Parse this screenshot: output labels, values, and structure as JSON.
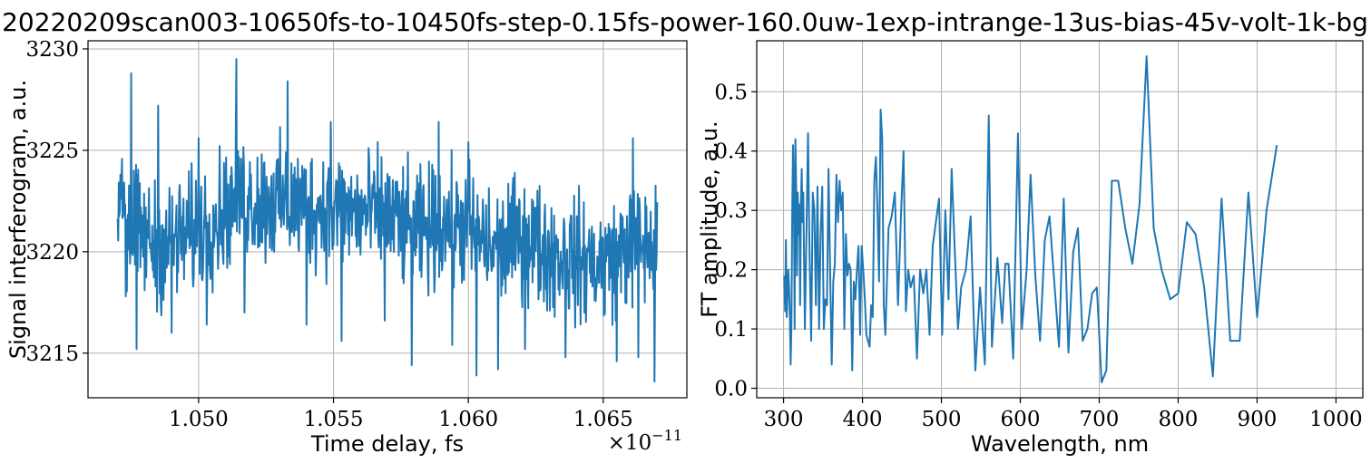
{
  "figure": {
    "suptitle": "20220209scan003-10650fs-to-10450fs-step-0.15fs-power-160.0uw-1exp-intrange-13us-bias-45v-volt-1k-bg"
  },
  "colors": {
    "series": "#1f77b4"
  },
  "chart_data": [
    {
      "type": "line",
      "title": "",
      "xlabel": "Time delay, fs",
      "ylabel": "Signal interferogram, a.u.",
      "x_offset_label": "×10",
      "x_offset_exponent": "−11",
      "xlim": [
        1.0459,
        1.0681
      ],
      "ylim": [
        3212.8,
        3230.4
      ],
      "grid": true,
      "xticks": [
        1.05,
        1.055,
        1.06,
        1.065
      ],
      "xtick_labels": [
        "1.050",
        "1.055",
        "1.060",
        "1.065"
      ],
      "yticks": [
        3215,
        3220,
        3225,
        3230
      ],
      "ytick_labels": [
        "3215",
        "3220",
        "3225",
        "3230"
      ],
      "series": [
        {
          "sampling": "x from 1.047 to 1.067 step 0.00002 (×10^-11), 1001 samples",
          "x_start": 1.047,
          "x_step": 2e-05,
          "trend": [
            [
              1.047,
              3221.6
            ],
            [
              1.0485,
              3220.2
            ],
            [
              1.05,
              3221.0
            ],
            [
              1.0515,
              3222.6
            ],
            [
              1.053,
              3222.4
            ],
            [
              1.055,
              3222.0
            ],
            [
              1.057,
              3221.8
            ],
            [
              1.058,
              3220.8
            ],
            [
              1.059,
              3221.4
            ],
            [
              1.06,
              3221.2
            ],
            [
              1.061,
              3220.0
            ],
            [
              1.062,
              3220.8
            ],
            [
              1.063,
              3220.0
            ],
            [
              1.064,
              3219.6
            ],
            [
              1.065,
              3219.4
            ],
            [
              1.066,
              3220.4
            ],
            [
              1.067,
              3220.2
            ]
          ],
          "noise_amplitude": 2.2,
          "spikes": [
            [
              1.0471,
              3223.8
            ],
            [
              1.0473,
              3217.8
            ],
            [
              1.0475,
              3228.8
            ],
            [
              1.0477,
              3215.2
            ],
            [
              1.0485,
              3227.2
            ],
            [
              1.049,
              3216.0
            ],
            [
              1.05,
              3225.6
            ],
            [
              1.0503,
              3216.4
            ],
            [
              1.0514,
              3229.5
            ],
            [
              1.0517,
              3217.0
            ],
            [
              1.0533,
              3228.4
            ],
            [
              1.054,
              3216.4
            ],
            [
              1.0549,
              3226.4
            ],
            [
              1.0553,
              3215.6
            ],
            [
              1.0569,
              3216.6
            ],
            [
              1.0579,
              3214.4
            ],
            [
              1.0589,
              3226.4
            ],
            [
              1.0594,
              3215.4
            ],
            [
              1.06,
              3225.4
            ],
            [
              1.0603,
              3213.9
            ],
            [
              1.0611,
              3214.2
            ],
            [
              1.0621,
              3215.2
            ],
            [
              1.0636,
              3214.8
            ],
            [
              1.0655,
              3214.6
            ],
            [
              1.0661,
              3225.6
            ],
            [
              1.0663,
              3214.8
            ],
            [
              1.0669,
              3213.6
            ]
          ]
        }
      ]
    },
    {
      "type": "line",
      "title": "",
      "xlabel": "Wavelength, nm",
      "ylabel": "FT amplitude, a.u.",
      "xlim": [
        266,
        1034
      ],
      "ylim": [
        -0.016,
        0.586
      ],
      "grid": true,
      "xticks": [
        300,
        400,
        500,
        600,
        700,
        800,
        900,
        1000
      ],
      "xtick_labels": [
        "300",
        "400",
        "500",
        "600",
        "700",
        "800",
        "900",
        "1000"
      ],
      "yticks": [
        0.0,
        0.1,
        0.2,
        0.3,
        0.4,
        0.5
      ],
      "ytick_labels": [
        "0.0",
        "0.1",
        "0.2",
        "0.3",
        "0.4",
        "0.5"
      ],
      "series": [
        {
          "points": [
            [
              301,
              0.19
            ],
            [
              302,
              0.13
            ],
            [
              303,
              0.25
            ],
            [
              304,
              0.12
            ],
            [
              305,
              0.16
            ],
            [
              306,
              0.2
            ],
            [
              307,
              0.17
            ],
            [
              308,
              0.12
            ],
            [
              309,
              0.04
            ],
            [
              310,
              0.11
            ],
            [
              311,
              0.3
            ],
            [
              312,
              0.41
            ],
            [
              313,
              0.34
            ],
            [
              314,
              0.1
            ],
            [
              315,
              0.42
            ],
            [
              316,
              0.34
            ],
            [
              317,
              0.19
            ],
            [
              318,
              0.33
            ],
            [
              319,
              0.26
            ],
            [
              320,
              0.31
            ],
            [
              321,
              0.14
            ],
            [
              322,
              0.31
            ],
            [
              323,
              0.37
            ],
            [
              324,
              0.28
            ],
            [
              325,
              0.33
            ],
            [
              327,
              0.1
            ],
            [
              329,
              0.26
            ],
            [
              331,
              0.43
            ],
            [
              333,
              0.22
            ],
            [
              335,
              0.08
            ],
            [
              337,
              0.33
            ],
            [
              339,
              0.3
            ],
            [
              341,
              0.14
            ],
            [
              343,
              0.34
            ],
            [
              345,
              0.1
            ],
            [
              347,
              0.26
            ],
            [
              349,
              0.34
            ],
            [
              351,
              0.1
            ],
            [
              353,
              0.15
            ],
            [
              355,
              0.14
            ],
            [
              357,
              0.37
            ],
            [
              359,
              0.2
            ],
            [
              361,
              0.04
            ],
            [
              363,
              0.18
            ],
            [
              365,
              0.21
            ],
            [
              367,
              0.36
            ],
            [
              369,
              0.28
            ],
            [
              371,
              0.35
            ],
            [
              373,
              0.3
            ],
            [
              375,
              0.33
            ],
            [
              377,
              0.1
            ],
            [
              379,
              0.26
            ],
            [
              381,
              0.19
            ],
            [
              383,
              0.21
            ],
            [
              385,
              0.2
            ],
            [
              387,
              0.03
            ],
            [
              389,
              0.18
            ],
            [
              391,
              0.15
            ],
            [
              393,
              0.2
            ],
            [
              395,
              0.24
            ],
            [
              397,
              0.09
            ],
            [
              399,
              0.24
            ],
            [
              401,
              0.2
            ],
            [
              403,
              0.15
            ],
            [
              405,
              0.09
            ],
            [
              407,
              0.08
            ],
            [
              409,
              0.07
            ],
            [
              411,
              0.14
            ],
            [
              413,
              0.12
            ],
            [
              415,
              0.35
            ],
            [
              417,
              0.39
            ],
            [
              419,
              0.3
            ],
            [
              421,
              0.18
            ],
            [
              423,
              0.47
            ],
            [
              425,
              0.42
            ],
            [
              427,
              0.14
            ],
            [
              429,
              0.09
            ],
            [
              433,
              0.27
            ],
            [
              437,
              0.29
            ],
            [
              441,
              0.33
            ],
            [
              445,
              0.14
            ],
            [
              449,
              0.3
            ],
            [
              452,
              0.4
            ],
            [
              455,
              0.13
            ],
            [
              458,
              0.2
            ],
            [
              461,
              0.17
            ],
            [
              465,
              0.19
            ],
            [
              469,
              0.05
            ],
            [
              473,
              0.2
            ],
            [
              477,
              0.16
            ],
            [
              481,
              0.2
            ],
            [
              485,
              0.09
            ],
            [
              489,
              0.24
            ],
            [
              493,
              0.28
            ],
            [
              497,
              0.32
            ],
            [
              501,
              0.09
            ],
            [
              505,
              0.3
            ],
            [
              509,
              0.15
            ],
            [
              513,
              0.37
            ],
            [
              517,
              0.23
            ],
            [
              521,
              0.1
            ],
            [
              525,
              0.17
            ],
            [
              531,
              0.2
            ],
            [
              537,
              0.29
            ],
            [
              543,
              0.03
            ],
            [
              549,
              0.17
            ],
            [
              555,
              0.04
            ],
            [
              560,
              0.46
            ],
            [
              564,
              0.07
            ],
            [
              571,
              0.22
            ],
            [
              577,
              0.11
            ],
            [
              581,
              0.21
            ],
            [
              585,
              0.21
            ],
            [
              591,
              0.05
            ],
            [
              597,
              0.43
            ],
            [
              602,
              0.1
            ],
            [
              608,
              0.2
            ],
            [
              613,
              0.36
            ],
            [
              619,
              0.19
            ],
            [
              625,
              0.08
            ],
            [
              631,
              0.25
            ],
            [
              637,
              0.29
            ],
            [
              643,
              0.18
            ],
            [
              649,
              0.07
            ],
            [
              655,
              0.32
            ],
            [
              661,
              0.06
            ],
            [
              667,
              0.23
            ],
            [
              673,
              0.27
            ],
            [
              679,
              0.08
            ],
            [
              685,
              0.1
            ],
            [
              691,
              0.16
            ],
            [
              697,
              0.17
            ],
            [
              703,
              0.01
            ],
            [
              709,
              0.03
            ],
            [
              716,
              0.35
            ],
            [
              724,
              0.35
            ],
            [
              733,
              0.27
            ],
            [
              742,
              0.21
            ],
            [
              751,
              0.31
            ],
            [
              760,
              0.56
            ],
            [
              769,
              0.27
            ],
            [
              779,
              0.2
            ],
            [
              790,
              0.15
            ],
            [
              800,
              0.16
            ],
            [
              811,
              0.28
            ],
            [
              822,
              0.26
            ],
            [
              833,
              0.17
            ],
            [
              844,
              0.02
            ],
            [
              855,
              0.32
            ],
            [
              866,
              0.08
            ],
            [
              878,
              0.08
            ],
            [
              889,
              0.33
            ],
            [
              900,
              0.12
            ],
            [
              912,
              0.3
            ],
            [
              925,
              0.41
            ]
          ]
        }
      ]
    }
  ]
}
